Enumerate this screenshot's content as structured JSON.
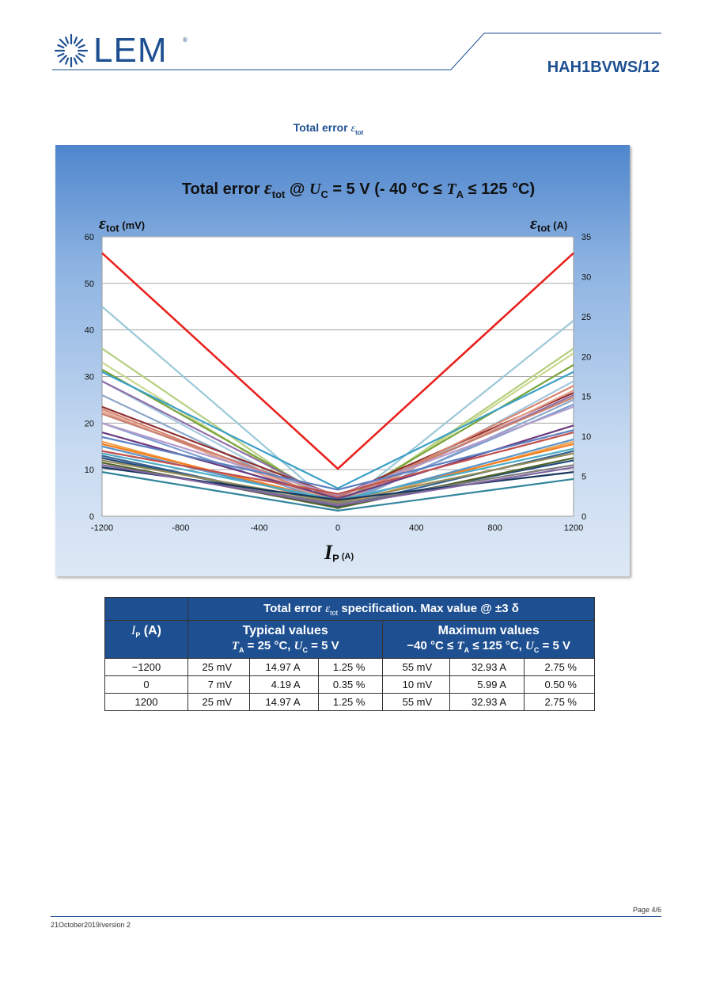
{
  "header": {
    "brand": "LEM",
    "brand_reg": "®",
    "doc_code": "HAH1BVWS/12",
    "colors": {
      "brand_blue": "#1d4f91"
    }
  },
  "section": {
    "title_prefix": "Total error ",
    "eps": "ε",
    "eps_sub": "tot"
  },
  "chart_data": {
    "type": "line",
    "title_parts": {
      "prefix": "Total error ",
      "eps": "ε",
      "eps_sub": "tot",
      "at": " @ ",
      "uc": "U",
      "uc_sub": "C",
      "mid": " = 5 V (- 40 °C ≤ ",
      "ta": "T",
      "ta_sub": "A",
      "suffix": " ≤ 125 °C)"
    },
    "ylabel_left": {
      "eps": "ε",
      "sub": "tot",
      "unit": " (mV)"
    },
    "ylabel_right": {
      "eps": "ε",
      "sub": "tot",
      "unit": " (A)"
    },
    "xlabel": {
      "sym": "I",
      "sub": "P",
      "unit": " (A)"
    },
    "x": [
      -1200,
      0,
      1200
    ],
    "xlim": [
      -1200,
      1200
    ],
    "xticks": [
      "-1200",
      "-800",
      "-400",
      "0",
      "400",
      "800",
      "1200"
    ],
    "ylim_left": [
      0,
      60
    ],
    "yticks_left": [
      "0",
      "10",
      "20",
      "30",
      "40",
      "50",
      "60"
    ],
    "ylim_right": [
      0,
      35
    ],
    "yticks_right": [
      "0",
      "5",
      "10",
      "15",
      "20",
      "25",
      "30",
      "35"
    ],
    "grid": "horizontal",
    "legend": "none",
    "limit_series": {
      "color": "#e8231e",
      "values": [
        56.5,
        10.2,
        56.5
      ]
    },
    "series": [
      {
        "color": "#9bc8d8",
        "values": [
          45.0,
          1.5,
          42.0
        ]
      },
      {
        "color": "#b5cf80",
        "values": [
          36.0,
          1.5,
          36.0
        ]
      },
      {
        "color": "#c9d98e",
        "values": [
          33.0,
          1.6,
          35.0
        ]
      },
      {
        "color": "#79a33a",
        "values": [
          31.5,
          2.8,
          32.5
        ]
      },
      {
        "color": "#3aa0c5",
        "values": [
          31.0,
          6.0,
          31.0
        ]
      },
      {
        "color": "#a5c9e0",
        "values": [
          29.0,
          1.6,
          29.0
        ]
      },
      {
        "color": "#8e6fa8",
        "values": [
          29.0,
          3.3,
          26.0
        ]
      },
      {
        "color": "#8da7c8",
        "values": [
          26.0,
          2.0,
          25.0
        ]
      },
      {
        "color": "#8e2d2d",
        "values": [
          23.5,
          4.3,
          26.5
        ]
      },
      {
        "color": "#d7856e",
        "values": [
          23.0,
          3.0,
          28.0
        ]
      },
      {
        "color": "#e3a08c",
        "values": [
          22.5,
          2.5,
          27.0
        ]
      },
      {
        "color": "#c87f6e",
        "values": [
          22.0,
          4.0,
          25.5
        ]
      },
      {
        "color": "#7d9ed0",
        "values": [
          20.0,
          2.6,
          24.0
        ]
      },
      {
        "color": "#b49ccc",
        "values": [
          20.0,
          4.5,
          23.5
        ]
      },
      {
        "color": "#6b3b7f",
        "values": [
          18.0,
          3.8,
          19.5
        ]
      },
      {
        "color": "#5a7fbf",
        "values": [
          17.0,
          5.7,
          18.5
        ]
      },
      {
        "color": "#f2a04a",
        "values": [
          16.0,
          2.4,
          16.0
        ]
      },
      {
        "color": "#f47f20",
        "values": [
          15.5,
          3.2,
          15.5
        ]
      },
      {
        "color": "#5b95c8",
        "values": [
          15.0,
          2.9,
          16.5
        ]
      },
      {
        "color": "#c0504d",
        "values": [
          14.0,
          4.8,
          18.0
        ]
      },
      {
        "color": "#4bacc6",
        "values": [
          13.5,
          3.5,
          14.5
        ]
      },
      {
        "color": "#376092",
        "values": [
          13.0,
          2.0,
          14.0
        ]
      },
      {
        "color": "#1f497d",
        "values": [
          12.5,
          2.2,
          12.0
        ]
      },
      {
        "color": "#948a54",
        "values": [
          12.0,
          3.0,
          13.5
        ]
      },
      {
        "color": "#4f6228",
        "values": [
          11.5,
          1.8,
          12.5
        ]
      },
      {
        "color": "#7f7f7f",
        "values": [
          11.0,
          2.7,
          11.0
        ]
      },
      {
        "color": "#17375e",
        "values": [
          10.5,
          3.5,
          9.5
        ]
      },
      {
        "color": "#31859c",
        "values": [
          9.5,
          1.2,
          8.0
        ]
      },
      {
        "color": "#8064a2",
        "values": [
          11.0,
          2.3,
          10.5
        ]
      }
    ]
  },
  "spec_table": {
    "title_prefix": "Total error ",
    "title_eps": "ε",
    "title_eps_sub": "tot",
    "title_suffix": " specification. Max value @ ±3 δ",
    "ip_sym": "I",
    "ip_sub": "P",
    "ip_unit": "  (A)",
    "typical_title": "Typical values",
    "typical_cond": {
      "ta": "T",
      "ta_sub": "A",
      "t1": " = 25 °C, ",
      "uc": "U",
      "uc_sub": "C",
      "t2": " = 5 V"
    },
    "max_title": "Maximum values",
    "max_cond": {
      "t0": "−40 °C ≤ ",
      "ta": "T",
      "ta_sub": "A",
      "t1": " ≤ 125 °C, ",
      "uc": "U",
      "uc_sub": "C",
      "t2": " = 5 V"
    },
    "rows": [
      [
        "−1200",
        "25 mV",
        "14.97 A",
        "1.25 %",
        "55 mV",
        "32.93 A",
        "2.75 %"
      ],
      [
        "0",
        "7 mV",
        "4.19 A",
        "0.35 %",
        "10 mV",
        "5.99 A",
        "0.50 %"
      ],
      [
        "1200",
        "25 mV",
        "14.97 A",
        "1.25 %",
        "55 mV",
        "32.93 A",
        "2.75 %"
      ]
    ]
  },
  "footer": {
    "page": "Page 4/6",
    "date": "21October2019/version 2"
  }
}
